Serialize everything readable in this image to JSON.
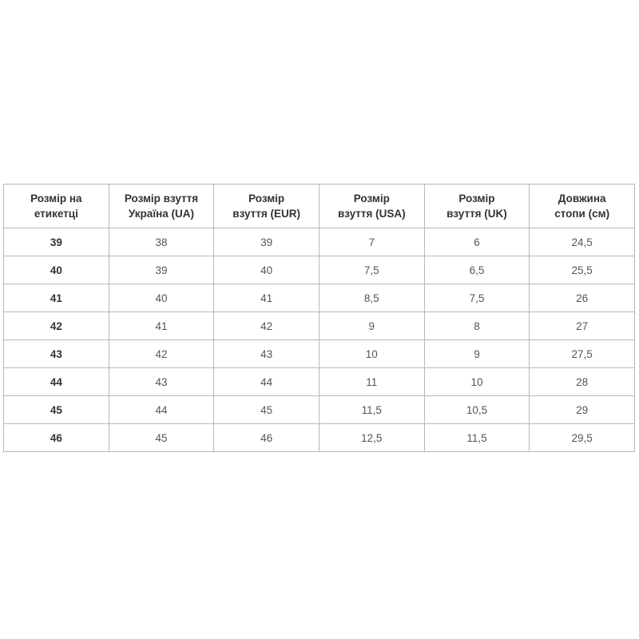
{
  "table": {
    "headers": [
      [
        "Розмір на",
        "етикетці"
      ],
      [
        "Розмір взуття",
        "Україна (UA)"
      ],
      [
        "Розмір",
        "взуття (EUR)"
      ],
      [
        "Розмір",
        "взуття (USA)"
      ],
      [
        "Розмір",
        "взуття (UK)"
      ],
      [
        "Довжина",
        "стопи (см)"
      ]
    ],
    "rows": [
      [
        "39",
        "38",
        "39",
        "7",
        "6",
        "24,5"
      ],
      [
        "40",
        "39",
        "40",
        "7,5",
        "6,5",
        "25,5"
      ],
      [
        "41",
        "40",
        "41",
        "8,5",
        "7,5",
        "26"
      ],
      [
        "42",
        "41",
        "42",
        "9",
        "8",
        "27"
      ],
      [
        "43",
        "42",
        "43",
        "10",
        "9",
        "27,5"
      ],
      [
        "44",
        "43",
        "44",
        "11",
        "10",
        "28"
      ],
      [
        "45",
        "44",
        "45",
        "11,5",
        "10,5",
        "29"
      ],
      [
        "46",
        "45",
        "46",
        "12,5",
        "11,5",
        "29,5"
      ]
    ]
  }
}
